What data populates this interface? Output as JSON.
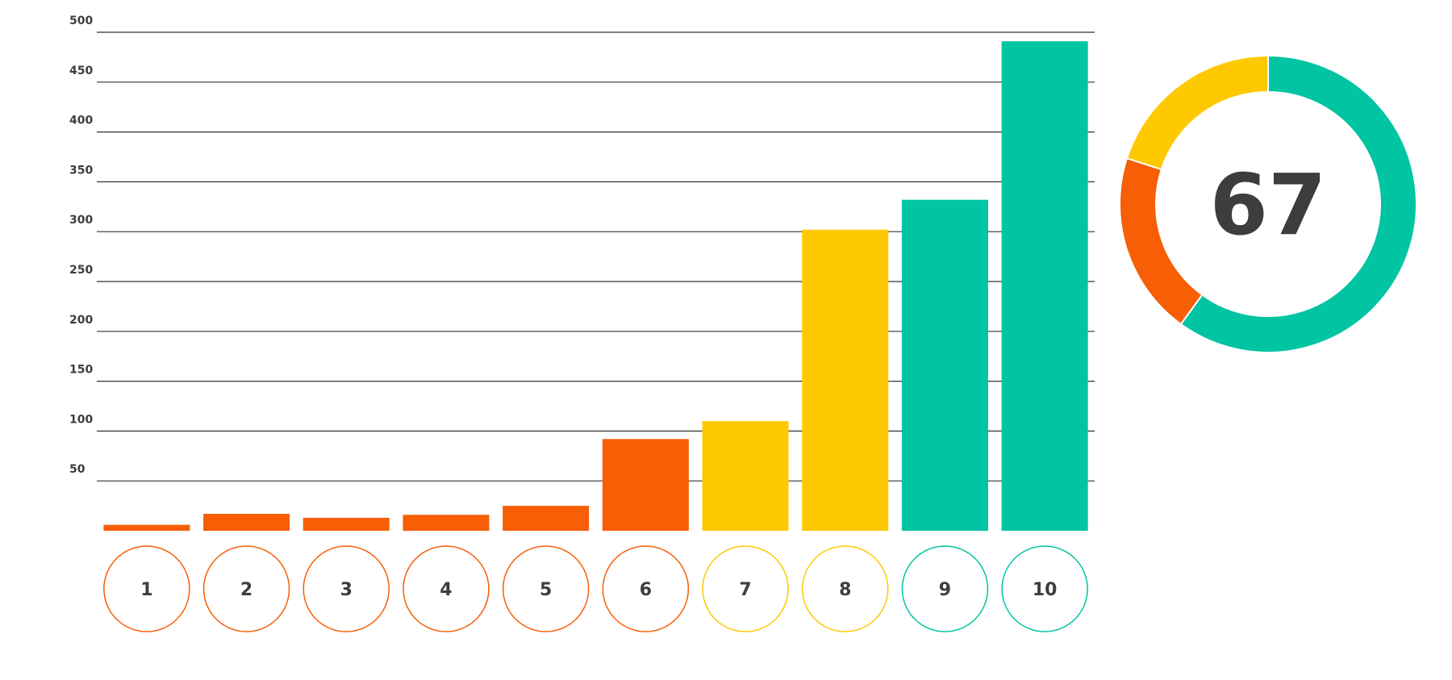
{
  "chart_data": [
    {
      "type": "bar",
      "categories": [
        "1",
        "2",
        "3",
        "4",
        "5",
        "6",
        "7",
        "8",
        "9",
        "10"
      ],
      "values": [
        6,
        17,
        13,
        16,
        25,
        92,
        110,
        302,
        332,
        491
      ],
      "bar_colors": [
        "#f75e05",
        "#f75e05",
        "#f75e05",
        "#f75e05",
        "#f75e05",
        "#f75e05",
        "#ffc902",
        "#ffc902",
        "#00c4a2",
        "#00c4a2"
      ],
      "y_ticks": [
        "50",
        "100",
        "150",
        "200",
        "250",
        "300",
        "350",
        "400",
        "450",
        "500"
      ],
      "ylim": [
        0,
        500
      ],
      "grid": true,
      "xlabel": "",
      "ylabel": "",
      "title": ""
    },
    {
      "type": "pie",
      "style": "donut",
      "center_label": "67",
      "slices": [
        {
          "value": 60,
          "color": "#00c4a2"
        },
        {
          "value": 20,
          "color": "#f75e05"
        },
        {
          "value": 20,
          "color": "#ffc902"
        }
      ]
    }
  ],
  "colors": {
    "orange": "#f75e05",
    "yellow": "#ffc902",
    "teal": "#00c4a2",
    "grid": "#333333",
    "text": "#3d3d3d"
  }
}
